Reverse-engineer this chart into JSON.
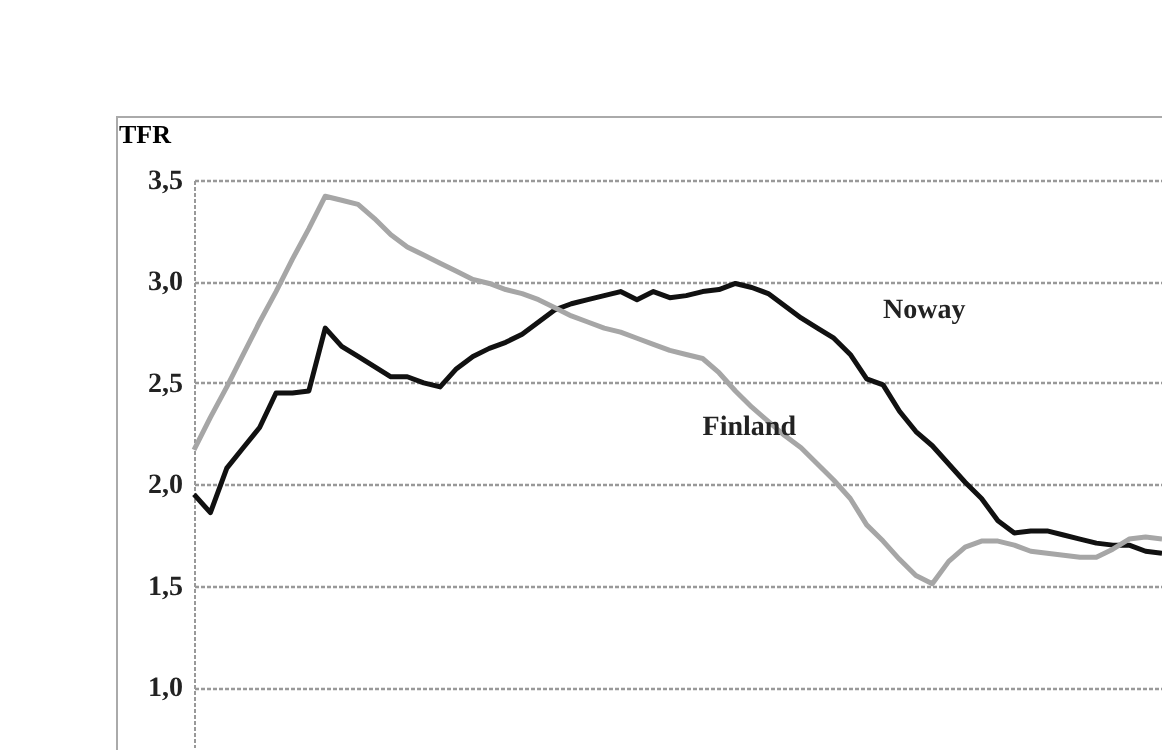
{
  "chart_data": {
    "type": "line",
    "ylabel": "TFR",
    "categories": [
      null,
      null,
      null,
      null,
      null,
      null,
      null,
      null,
      null,
      null,
      null,
      null,
      null,
      null,
      null,
      null,
      null,
      null,
      null,
      null,
      null,
      null,
      null,
      null,
      null,
      null,
      null,
      null,
      null,
      null,
      null,
      null,
      null,
      null,
      null,
      null,
      null,
      null,
      null,
      null,
      null,
      null,
      null,
      null,
      null,
      null,
      null,
      null,
      null,
      null,
      null,
      null,
      null,
      null,
      null,
      null,
      null,
      null,
      null,
      null
    ],
    "series": [
      {
        "name": "Noway",
        "color": "#111111",
        "values": [
          1.95,
          1.86,
          2.08,
          2.18,
          2.28,
          2.45,
          2.45,
          2.46,
          2.77,
          2.68,
          2.63,
          2.58,
          2.53,
          2.53,
          2.5,
          2.48,
          2.57,
          2.63,
          2.67,
          2.7,
          2.74,
          2.8,
          2.86,
          2.89,
          2.91,
          2.93,
          2.95,
          2.91,
          2.95,
          2.92,
          2.93,
          2.95,
          2.96,
          2.99,
          2.97,
          2.94,
          2.88,
          2.82,
          2.77,
          2.72,
          2.64,
          2.52,
          2.49,
          2.36,
          2.26,
          2.19,
          2.1,
          2.01,
          1.93,
          1.82,
          1.76,
          1.77,
          1.77,
          1.75,
          1.73,
          1.71,
          1.7,
          1.7,
          1.67,
          1.66
        ]
      },
      {
        "name": "Finland",
        "color": "#a6a6a6",
        "values": [
          2.17,
          2.33,
          2.48,
          2.64,
          2.8,
          2.95,
          3.11,
          3.26,
          3.42,
          3.4,
          3.38,
          3.31,
          3.23,
          3.17,
          3.13,
          3.09,
          3.05,
          3.01,
          2.99,
          2.96,
          2.94,
          2.91,
          2.87,
          2.83,
          2.8,
          2.77,
          2.75,
          2.72,
          2.69,
          2.66,
          2.64,
          2.62,
          2.55,
          2.46,
          2.38,
          2.31,
          2.24,
          2.18,
          2.1,
          2.02,
          1.93,
          1.8,
          1.72,
          1.63,
          1.55,
          1.51,
          1.62,
          1.69,
          1.72,
          1.72,
          1.7,
          1.67,
          1.66,
          1.65,
          1.64,
          1.64,
          1.68,
          1.73,
          1.74,
          1.73
        ]
      }
    ],
    "ylim": [
      0.7,
      3.5
    ],
    "yticks": [
      {
        "value": 1.0,
        "label": "1,0"
      },
      {
        "value": 1.5,
        "label": "1,5"
      },
      {
        "value": 2.0,
        "label": "2,0"
      },
      {
        "value": 2.5,
        "label": "2,5"
      },
      {
        "value": 3.0,
        "label": "3,0"
      },
      {
        "value": 3.5,
        "label": "3,5"
      }
    ],
    "grid": "y",
    "tick_labels": "y"
  }
}
